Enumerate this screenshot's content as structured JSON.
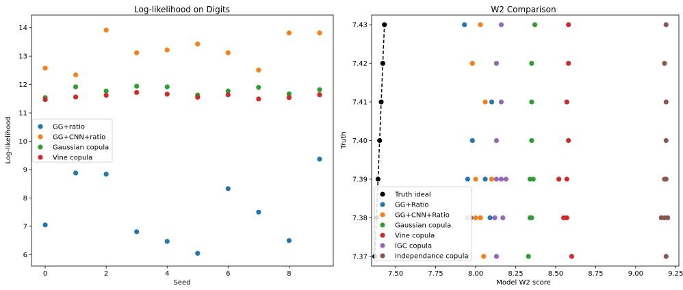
{
  "chart_data": [
    {
      "type": "scatter",
      "title": "Log-likelihood on Digits",
      "xlabel": "Seed",
      "ylabel": "Log-likelihood",
      "xlim": [
        -0.45,
        9.45
      ],
      "ylim": [
        5.6,
        14.45
      ],
      "xticks": [
        0,
        2,
        4,
        6,
        8
      ],
      "yticks": [
        6,
        7,
        8,
        9,
        10,
        11,
        12,
        13,
        14
      ],
      "grid": false,
      "legend_position": "center-left",
      "series": [
        {
          "name": "GG+ratio",
          "color": "#1f77b4",
          "x": [
            0,
            1,
            2,
            3,
            4,
            5,
            6,
            7,
            8,
            9
          ],
          "y": [
            7.05,
            8.88,
            8.84,
            6.81,
            6.47,
            6.05,
            8.33,
            7.5,
            6.5,
            9.37
          ]
        },
        {
          "name": "GG+CNN+ratio",
          "color": "#ff7f0e",
          "x": [
            0,
            1,
            2,
            3,
            4,
            5,
            6,
            7,
            8,
            9
          ],
          "y": [
            12.58,
            12.34,
            13.92,
            13.12,
            13.22,
            13.43,
            13.12,
            12.51,
            13.82,
            13.82
          ]
        },
        {
          "name": "Gaussian copula",
          "color": "#2ca02c",
          "x": [
            0,
            1,
            2,
            3,
            4,
            5,
            6,
            7,
            8,
            9
          ],
          "y": [
            11.54,
            11.92,
            11.77,
            11.94,
            11.92,
            11.63,
            11.77,
            11.9,
            11.67,
            11.82
          ]
        },
        {
          "name": "Vine copula",
          "color": "#d62728",
          "x": [
            0,
            1,
            2,
            3,
            4,
            5,
            6,
            7,
            8,
            9
          ],
          "y": [
            11.47,
            11.56,
            11.62,
            11.72,
            11.66,
            11.55,
            11.64,
            11.49,
            11.54,
            11.64
          ]
        }
      ]
    },
    {
      "type": "scatter",
      "title": "W2 Comparison",
      "xlabel": "Model W2 score",
      "ylabel": "Truth",
      "xlim": [
        7.35,
        9.27
      ],
      "ylim": [
        7.3675,
        7.4325
      ],
      "xticks": [
        "7.50",
        "7.75",
        "8.00",
        "8.25",
        "8.50",
        "8.75",
        "9.00",
        "9.25"
      ],
      "yticks": [
        "7.37",
        "7.38",
        "7.39",
        "7.40",
        "7.41",
        "7.42",
        "7.43"
      ],
      "grid": false,
      "legend_position": "bottom-left",
      "series": [
        {
          "name": "Truth ideal",
          "color": "#000000",
          "style": "dashed-line-markers",
          "x": [
            7.37,
            7.38,
            7.39,
            7.4,
            7.41,
            7.42,
            7.43
          ],
          "y": [
            7.37,
            7.38,
            7.39,
            7.4,
            7.41,
            7.42,
            7.43
          ]
        },
        {
          "name": "GG+Ratio",
          "color": "#1f77b4",
          "x": [
            7.93,
            7.98,
            8.1,
            7.98,
            7.95,
            8.06,
            7.95,
            7.97,
            8.09,
            7.94
          ],
          "y": [
            7.43,
            7.42,
            7.41,
            7.4,
            7.39,
            7.39,
            7.38,
            7.38,
            7.38,
            7.37
          ]
        },
        {
          "name": "GG+CNN+Ratio",
          "color": "#ff7f0e",
          "x": [
            8.03,
            7.98,
            8.06,
            8.0,
            8.1,
            7.96,
            8.0,
            8.03,
            8.05
          ],
          "y": [
            7.43,
            7.42,
            7.41,
            7.39,
            7.39,
            7.38,
            7.38,
            7.38,
            7.37
          ]
        },
        {
          "name": "Gaussian copula",
          "color": "#2ca02c",
          "x": [
            8.37,
            8.35,
            8.35,
            8.35,
            8.34,
            8.36,
            8.34,
            8.35,
            8.33
          ],
          "y": [
            7.43,
            7.42,
            7.41,
            7.4,
            7.39,
            7.39,
            7.38,
            7.38,
            7.37
          ]
        },
        {
          "name": "Vine copula",
          "color": "#d62728",
          "x": [
            8.58,
            8.58,
            8.57,
            8.58,
            8.52,
            8.57,
            8.55,
            8.57,
            8.6
          ],
          "y": [
            7.43,
            7.42,
            7.41,
            7.4,
            7.39,
            7.39,
            7.38,
            7.38,
            7.37
          ]
        },
        {
          "name": "IGC copula",
          "color": "#9467bd",
          "x": [
            8.16,
            8.13,
            8.16,
            8.13,
            8.13,
            8.16,
            8.19,
            8.12,
            8.17,
            8.13
          ],
          "y": [
            7.43,
            7.42,
            7.41,
            7.4,
            7.39,
            7.39,
            7.39,
            7.38,
            7.38,
            7.37
          ]
        },
        {
          "name": "Independance copula",
          "color": "#8c564b",
          "x": [
            9.19,
            9.18,
            9.19,
            9.19,
            9.18,
            9.19,
            9.16,
            9.18,
            9.2,
            9.19
          ],
          "y": [
            7.43,
            7.42,
            7.41,
            7.4,
            7.39,
            7.39,
            7.38,
            7.38,
            7.38,
            7.37
          ]
        }
      ]
    }
  ]
}
